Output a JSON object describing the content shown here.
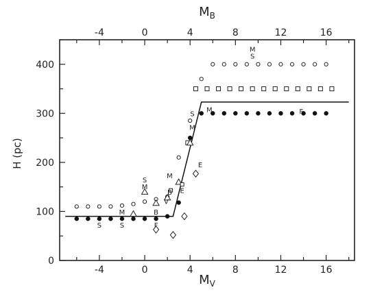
{
  "chart_data": {
    "type": "scatter",
    "title": "",
    "xlabel": "Mv",
    "xlabel_main": "M",
    "xlabel_sub": "V",
    "x2label": "MB",
    "x2label_main": "M",
    "x2label_sub": "B",
    "ylabel": "H (pc)",
    "xlim": [
      -7.5,
      18.5
    ],
    "ylim": [
      0,
      450
    ],
    "x2lim": [
      -7.5,
      18.5
    ],
    "xticks": [
      -4,
      0,
      4,
      8,
      12,
      16
    ],
    "xtick_labels": [
      "-4",
      "0",
      "4",
      "8",
      "12",
      "16"
    ],
    "x2ticks": [
      -4,
      0,
      4,
      8,
      12,
      16
    ],
    "x2tick_labels": [
      "-4",
      "0",
      "4",
      "8",
      "12",
      "16"
    ],
    "yticks": [
      0,
      100,
      200,
      300,
      400
    ],
    "ytick_labels": [
      "0",
      "100",
      "200",
      "300",
      "400"
    ],
    "grid": false,
    "series": [
      {
        "marker": "open-circle",
        "points": [
          [
            -6,
            110
          ],
          [
            -5,
            110
          ],
          [
            -4,
            110
          ],
          [
            -3,
            110
          ],
          [
            -2,
            112
          ],
          [
            -1,
            115
          ],
          [
            0,
            120
          ],
          [
            1,
            125
          ],
          [
            2,
            130
          ],
          [
            3,
            210
          ],
          [
            4,
            285
          ],
          [
            5,
            370
          ],
          [
            6,
            400
          ],
          [
            7,
            400
          ],
          [
            8,
            400
          ],
          [
            9,
            400
          ],
          [
            10,
            400
          ],
          [
            11,
            400
          ],
          [
            12,
            400
          ],
          [
            13,
            400
          ],
          [
            14,
            400
          ],
          [
            15,
            400
          ],
          [
            16,
            400
          ]
        ]
      },
      {
        "marker": "filled-circle",
        "points": [
          [
            -6,
            85
          ],
          [
            -5,
            85
          ],
          [
            -4,
            85
          ],
          [
            -3,
            85
          ],
          [
            -2,
            85
          ],
          [
            -1,
            85
          ],
          [
            0,
            85
          ],
          [
            1,
            85
          ],
          [
            2,
            90
          ],
          [
            3,
            118
          ],
          [
            4,
            250
          ],
          [
            5,
            300
          ],
          [
            6,
            300
          ],
          [
            7,
            300
          ],
          [
            8,
            300
          ],
          [
            9,
            300
          ],
          [
            10,
            300
          ],
          [
            11,
            300
          ],
          [
            12,
            300
          ],
          [
            13,
            300
          ],
          [
            14,
            300
          ],
          [
            15,
            300
          ],
          [
            16,
            300
          ]
        ]
      },
      {
        "marker": "square",
        "points": [
          [
            3.8,
            240
          ],
          [
            4.5,
            350
          ],
          [
            5.5,
            350
          ],
          [
            6.5,
            350
          ],
          [
            7.5,
            350
          ],
          [
            8.5,
            350
          ],
          [
            9.5,
            350
          ],
          [
            10.5,
            350
          ],
          [
            11.5,
            350
          ],
          [
            12.5,
            350
          ],
          [
            13.5,
            350
          ],
          [
            14.5,
            350
          ],
          [
            15.5,
            350
          ],
          [
            16.5,
            350
          ]
        ]
      },
      {
        "marker": "triangle",
        "points": [
          [
            -1,
            95
          ],
          [
            0,
            140
          ],
          [
            1,
            117
          ],
          [
            2,
            128
          ],
          [
            3,
            160
          ],
          [
            4,
            240
          ]
        ]
      },
      {
        "marker": "diamond",
        "points": [
          [
            1,
            63
          ],
          [
            2.5,
            52
          ],
          [
            3.5,
            90
          ],
          [
            4.5,
            177
          ]
        ]
      },
      {
        "marker": "small-square",
        "points": [
          [
            2.3,
            143
          ],
          [
            3.3,
            155
          ]
        ]
      }
    ],
    "fit_line": [
      [
        -7,
        90
      ],
      [
        2.5,
        90
      ],
      [
        5,
        323
      ],
      [
        18,
        323
      ]
    ],
    "letter_labels": [
      {
        "text": "S",
        "x": -4,
        "y": 73
      },
      {
        "text": "S",
        "x": -2,
        "y": 73
      },
      {
        "text": "M",
        "x": -2,
        "y": 99
      },
      {
        "text": "S",
        "x": 0,
        "y": 165
      },
      {
        "text": "M",
        "x": 0,
        "y": 151
      },
      {
        "text": "B",
        "x": 1,
        "y": 99
      },
      {
        "text": "F",
        "x": 1,
        "y": 73
      },
      {
        "text": "V",
        "x": 1.9,
        "y": 121
      },
      {
        "text": "M",
        "x": 2.2,
        "y": 173
      },
      {
        "text": "B",
        "x": 2.2,
        "y": 140
      },
      {
        "text": "E",
        "x": 3.3,
        "y": 143
      },
      {
        "text": "S",
        "x": 4.2,
        "y": 300
      },
      {
        "text": "M",
        "x": 4.2,
        "y": 272
      },
      {
        "text": "E",
        "x": 4.9,
        "y": 196
      },
      {
        "text": "M",
        "x": 5.7,
        "y": 308
      },
      {
        "text": "M",
        "x": 9.5,
        "y": 431
      },
      {
        "text": "S",
        "x": 9.5,
        "y": 417
      },
      {
        "text": "F",
        "x": 13.8,
        "y": 305
      }
    ]
  }
}
